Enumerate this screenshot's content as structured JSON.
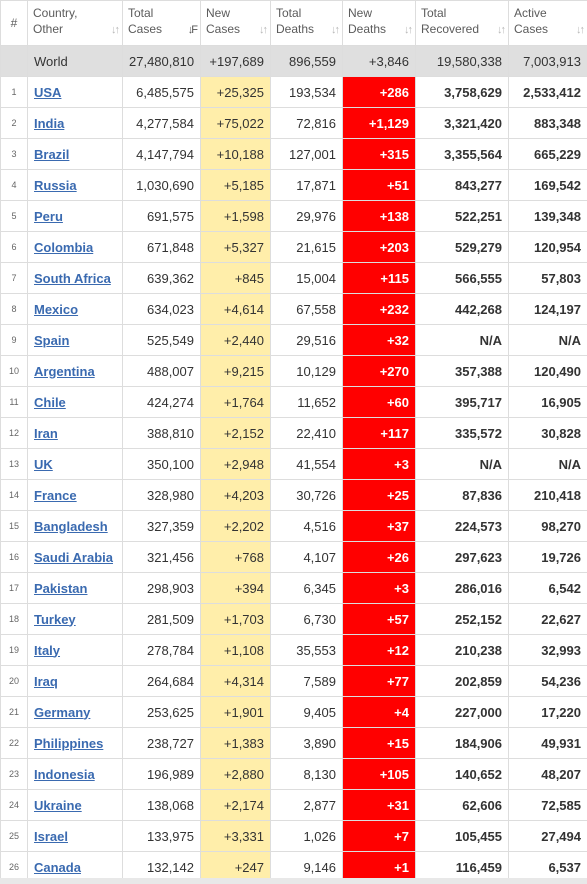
{
  "headers": {
    "rank": "#",
    "country": [
      "Country,",
      "Other"
    ],
    "total_cases": [
      "Total",
      "Cases"
    ],
    "new_cases": [
      "New",
      "Cases"
    ],
    "total_deaths": [
      "Total",
      "Deaths"
    ],
    "new_deaths": [
      "New",
      "Deaths"
    ],
    "total_recovered": [
      "Total",
      "Recovered"
    ],
    "active_cases": [
      "Active",
      "Cases"
    ]
  },
  "world": {
    "country": "World",
    "total_cases": "27,480,810",
    "new_cases": "+197,689",
    "total_deaths": "896,559",
    "new_deaths": "+3,846",
    "total_recovered": "19,580,338",
    "active_cases": "7,003,913"
  },
  "rows": [
    {
      "rank": "1",
      "country": "USA",
      "total_cases": "6,485,575",
      "new_cases": "+25,325",
      "total_deaths": "193,534",
      "new_deaths": "+286",
      "total_recovered": "3,758,629",
      "active_cases": "2,533,412"
    },
    {
      "rank": "2",
      "country": "India",
      "total_cases": "4,277,584",
      "new_cases": "+75,022",
      "total_deaths": "72,816",
      "new_deaths": "+1,129",
      "total_recovered": "3,321,420",
      "active_cases": "883,348"
    },
    {
      "rank": "3",
      "country": "Brazil",
      "total_cases": "4,147,794",
      "new_cases": "+10,188",
      "total_deaths": "127,001",
      "new_deaths": "+315",
      "total_recovered": "3,355,564",
      "active_cases": "665,229"
    },
    {
      "rank": "4",
      "country": "Russia",
      "total_cases": "1,030,690",
      "new_cases": "+5,185",
      "total_deaths": "17,871",
      "new_deaths": "+51",
      "total_recovered": "843,277",
      "active_cases": "169,542"
    },
    {
      "rank": "5",
      "country": "Peru",
      "total_cases": "691,575",
      "new_cases": "+1,598",
      "total_deaths": "29,976",
      "new_deaths": "+138",
      "total_recovered": "522,251",
      "active_cases": "139,348"
    },
    {
      "rank": "6",
      "country": "Colombia",
      "total_cases": "671,848",
      "new_cases": "+5,327",
      "total_deaths": "21,615",
      "new_deaths": "+203",
      "total_recovered": "529,279",
      "active_cases": "120,954"
    },
    {
      "rank": "7",
      "country": "South Africa",
      "total_cases": "639,362",
      "new_cases": "+845",
      "total_deaths": "15,004",
      "new_deaths": "+115",
      "total_recovered": "566,555",
      "active_cases": "57,803"
    },
    {
      "rank": "8",
      "country": "Mexico",
      "total_cases": "634,023",
      "new_cases": "+4,614",
      "total_deaths": "67,558",
      "new_deaths": "+232",
      "total_recovered": "442,268",
      "active_cases": "124,197"
    },
    {
      "rank": "9",
      "country": "Spain",
      "total_cases": "525,549",
      "new_cases": "+2,440",
      "total_deaths": "29,516",
      "new_deaths": "+32",
      "total_recovered": "N/A",
      "active_cases": "N/A"
    },
    {
      "rank": "10",
      "country": "Argentina",
      "total_cases": "488,007",
      "new_cases": "+9,215",
      "total_deaths": "10,129",
      "new_deaths": "+270",
      "total_recovered": "357,388",
      "active_cases": "120,490"
    },
    {
      "rank": "11",
      "country": "Chile",
      "total_cases": "424,274",
      "new_cases": "+1,764",
      "total_deaths": "11,652",
      "new_deaths": "+60",
      "total_recovered": "395,717",
      "active_cases": "16,905"
    },
    {
      "rank": "12",
      "country": "Iran",
      "total_cases": "388,810",
      "new_cases": "+2,152",
      "total_deaths": "22,410",
      "new_deaths": "+117",
      "total_recovered": "335,572",
      "active_cases": "30,828"
    },
    {
      "rank": "13",
      "country": "UK",
      "total_cases": "350,100",
      "new_cases": "+2,948",
      "total_deaths": "41,554",
      "new_deaths": "+3",
      "total_recovered": "N/A",
      "active_cases": "N/A"
    },
    {
      "rank": "14",
      "country": "France",
      "total_cases": "328,980",
      "new_cases": "+4,203",
      "total_deaths": "30,726",
      "new_deaths": "+25",
      "total_recovered": "87,836",
      "active_cases": "210,418"
    },
    {
      "rank": "15",
      "country": "Bangladesh",
      "total_cases": "327,359",
      "new_cases": "+2,202",
      "total_deaths": "4,516",
      "new_deaths": "+37",
      "total_recovered": "224,573",
      "active_cases": "98,270"
    },
    {
      "rank": "16",
      "country": "Saudi Arabia",
      "total_cases": "321,456",
      "new_cases": "+768",
      "total_deaths": "4,107",
      "new_deaths": "+26",
      "total_recovered": "297,623",
      "active_cases": "19,726"
    },
    {
      "rank": "17",
      "country": "Pakistan",
      "total_cases": "298,903",
      "new_cases": "+394",
      "total_deaths": "6,345",
      "new_deaths": "+3",
      "total_recovered": "286,016",
      "active_cases": "6,542"
    },
    {
      "rank": "18",
      "country": "Turkey",
      "total_cases": "281,509",
      "new_cases": "+1,703",
      "total_deaths": "6,730",
      "new_deaths": "+57",
      "total_recovered": "252,152",
      "active_cases": "22,627"
    },
    {
      "rank": "19",
      "country": "Italy",
      "total_cases": "278,784",
      "new_cases": "+1,108",
      "total_deaths": "35,553",
      "new_deaths": "+12",
      "total_recovered": "210,238",
      "active_cases": "32,993"
    },
    {
      "rank": "20",
      "country": "Iraq",
      "total_cases": "264,684",
      "new_cases": "+4,314",
      "total_deaths": "7,589",
      "new_deaths": "+77",
      "total_recovered": "202,859",
      "active_cases": "54,236"
    },
    {
      "rank": "21",
      "country": "Germany",
      "total_cases": "253,625",
      "new_cases": "+1,901",
      "total_deaths": "9,405",
      "new_deaths": "+4",
      "total_recovered": "227,000",
      "active_cases": "17,220"
    },
    {
      "rank": "22",
      "country": "Philippines",
      "total_cases": "238,727",
      "new_cases": "+1,383",
      "total_deaths": "3,890",
      "new_deaths": "+15",
      "total_recovered": "184,906",
      "active_cases": "49,931"
    },
    {
      "rank": "23",
      "country": "Indonesia",
      "total_cases": "196,989",
      "new_cases": "+2,880",
      "total_deaths": "8,130",
      "new_deaths": "+105",
      "total_recovered": "140,652",
      "active_cases": "48,207"
    },
    {
      "rank": "24",
      "country": "Ukraine",
      "total_cases": "138,068",
      "new_cases": "+2,174",
      "total_deaths": "2,877",
      "new_deaths": "+31",
      "total_recovered": "62,606",
      "active_cases": "72,585"
    },
    {
      "rank": "25",
      "country": "Israel",
      "total_cases": "133,975",
      "new_cases": "+3,331",
      "total_deaths": "1,026",
      "new_deaths": "+7",
      "total_recovered": "105,455",
      "active_cases": "27,494"
    },
    {
      "rank": "26",
      "country": "Canada",
      "total_cases": "132,142",
      "new_cases": "+247",
      "total_deaths": "9,146",
      "new_deaths": "+1",
      "total_recovered": "116,459",
      "active_cases": "6,537"
    }
  ],
  "colors": {
    "new_cases_bg": "#ffeeaa",
    "new_deaths_bg": "#ff0000",
    "link": "#3a6ab0",
    "world_row_bg": "#dfdfdf"
  },
  "icons": [
    "sort-arrows-icon",
    "sort-desc-icon"
  ]
}
